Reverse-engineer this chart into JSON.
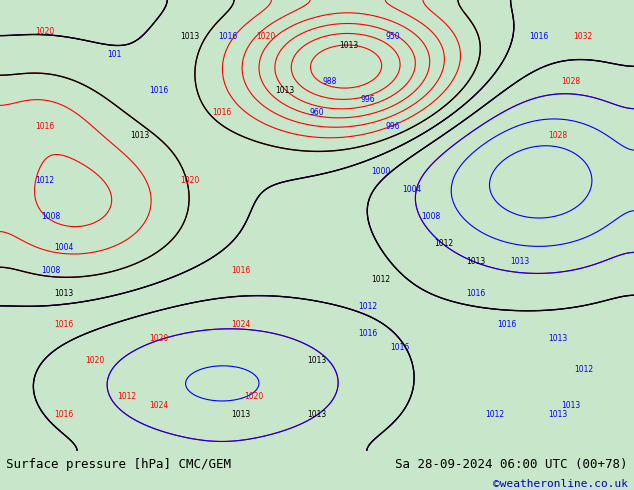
{
  "title_left": "Surface pressure [hPa] CMC/GEM",
  "title_right": "Sa 28-09-2024 06:00 UTC (00+78)",
  "credit": "©weatheronline.co.uk",
  "figsize": [
    6.34,
    4.9
  ],
  "dpi": 100,
  "bg_color": "#c8e6c9",
  "land_color": "#c8e6c9",
  "sea_color": "#b0c4de",
  "bottom_bar_color": "#ffffff",
  "bottom_text_color": "#000000",
  "credit_color": "#0000cc",
  "contour_colors": {
    "low": "#ff0000",
    "mid": "#000000",
    "high": "#0000ff"
  },
  "font_size_label": 9,
  "font_size_credit": 8
}
